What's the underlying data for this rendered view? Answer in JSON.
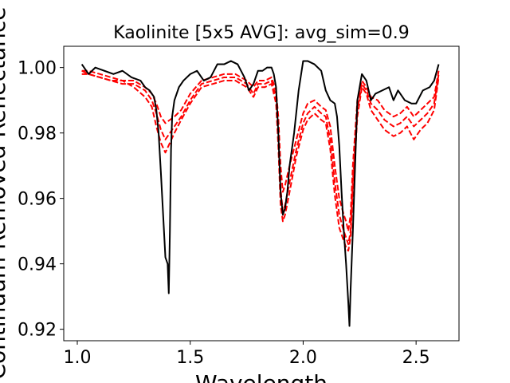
{
  "chart_data": {
    "type": "line",
    "title": "Kaolinite [5x5 AVG]: avg_sim=0.9",
    "xlabel": "Wavelength",
    "ylabel": "Continuum Removed Reflectance",
    "xlim": [
      0.94,
      2.69
    ],
    "ylim": [
      0.9165,
      1.0065
    ],
    "grid": false,
    "x_ticks": [
      1.0,
      1.5,
      2.0,
      2.5
    ],
    "x_tick_labels": [
      "1.0",
      "1.5",
      "2.0",
      "2.5"
    ],
    "y_ticks": [
      0.92,
      0.94,
      0.96,
      0.98,
      1.0
    ],
    "y_tick_labels": [
      "0.92",
      "0.94",
      "0.96",
      "0.98",
      "1.00"
    ],
    "colors": {
      "reference": "#000000",
      "pixels": "#ff0000"
    },
    "series": [
      {
        "style": "solid",
        "x": [
          1.02,
          1.05,
          1.08,
          1.12,
          1.16,
          1.2,
          1.24,
          1.28,
          1.3,
          1.32,
          1.34,
          1.35,
          1.36,
          1.37,
          1.38,
          1.39,
          1.4,
          1.405,
          1.41,
          1.415,
          1.42,
          1.43,
          1.45,
          1.47,
          1.5,
          1.53,
          1.56,
          1.59,
          1.62,
          1.65,
          1.68,
          1.71,
          1.74,
          1.76,
          1.78,
          1.8,
          1.82,
          1.84,
          1.86,
          1.87,
          1.88,
          1.89,
          1.9,
          1.91,
          1.92,
          1.93,
          1.94,
          1.96,
          1.98,
          2.0,
          2.02,
          2.05,
          2.08,
          2.1,
          2.12,
          2.14,
          2.15,
          2.16,
          2.17,
          2.18,
          2.19,
          2.2,
          2.205,
          2.21,
          2.22,
          2.23,
          2.24,
          2.26,
          2.28,
          2.3,
          2.32,
          2.35,
          2.38,
          2.4,
          2.42,
          2.45,
          2.48,
          2.5,
          2.53,
          2.56,
          2.58,
          2.6
        ],
        "y": [
          1.001,
          0.998,
          1.0,
          0.999,
          0.998,
          0.999,
          0.997,
          0.996,
          0.994,
          0.993,
          0.991,
          0.987,
          0.98,
          0.968,
          0.955,
          0.942,
          0.94,
          0.931,
          0.95,
          0.975,
          0.985,
          0.99,
          0.994,
          0.996,
          0.998,
          0.999,
          0.996,
          0.997,
          1.001,
          1.001,
          1.002,
          1.001,
          0.997,
          0.993,
          0.995,
          0.999,
          0.999,
          1.0,
          1.0,
          0.998,
          0.994,
          0.98,
          0.962,
          0.955,
          0.957,
          0.962,
          0.97,
          0.98,
          0.993,
          1.002,
          1.002,
          1.001,
          0.999,
          0.993,
          0.99,
          0.989,
          0.985,
          0.976,
          0.962,
          0.95,
          0.94,
          0.928,
          0.921,
          0.932,
          0.95,
          0.97,
          0.99,
          0.998,
          0.996,
          0.99,
          0.992,
          0.993,
          0.994,
          0.99,
          0.993,
          0.99,
          0.989,
          0.989,
          0.993,
          0.994,
          0.996,
          1.001
        ]
      },
      {
        "style": "dashed",
        "x": [
          1.02,
          1.05,
          1.1,
          1.15,
          1.2,
          1.25,
          1.3,
          1.33,
          1.35,
          1.37,
          1.39,
          1.41,
          1.43,
          1.46,
          1.5,
          1.55,
          1.6,
          1.65,
          1.7,
          1.75,
          1.78,
          1.8,
          1.83,
          1.86,
          1.88,
          1.89,
          1.9,
          1.91,
          1.92,
          1.94,
          1.97,
          2.0,
          2.02,
          2.05,
          2.08,
          2.1,
          2.12,
          2.14,
          2.16,
          2.18,
          2.19,
          2.2,
          2.21,
          2.22,
          2.24,
          2.26,
          2.28,
          2.3,
          2.33,
          2.36,
          2.4,
          2.43,
          2.46,
          2.49,
          2.52,
          2.55,
          2.58,
          2.6
        ],
        "y": [
          0.999,
          0.999,
          0.998,
          0.997,
          0.996,
          0.996,
          0.994,
          0.992,
          0.989,
          0.985,
          0.983,
          0.984,
          0.985,
          0.987,
          0.992,
          0.996,
          0.997,
          0.998,
          0.998,
          0.996,
          0.994,
          0.996,
          0.996,
          0.997,
          0.993,
          0.985,
          0.97,
          0.962,
          0.964,
          0.97,
          0.978,
          0.986,
          0.989,
          0.99,
          0.988,
          0.987,
          0.982,
          0.97,
          0.96,
          0.955,
          0.953,
          0.95,
          0.955,
          0.97,
          0.99,
          0.996,
          0.994,
          0.991,
          0.99,
          0.987,
          0.985,
          0.986,
          0.988,
          0.985,
          0.987,
          0.989,
          0.991,
          0.999
        ]
      },
      {
        "style": "dashed",
        "x": [
          1.02,
          1.05,
          1.1,
          1.15,
          1.2,
          1.25,
          1.3,
          1.33,
          1.35,
          1.37,
          1.39,
          1.41,
          1.43,
          1.46,
          1.5,
          1.55,
          1.6,
          1.65,
          1.7,
          1.75,
          1.78,
          1.8,
          1.83,
          1.86,
          1.88,
          1.89,
          1.9,
          1.91,
          1.92,
          1.94,
          1.97,
          2.0,
          2.02,
          2.05,
          2.08,
          2.1,
          2.12,
          2.14,
          2.16,
          2.18,
          2.19,
          2.2,
          2.21,
          2.22,
          2.24,
          2.26,
          2.28,
          2.3,
          2.33,
          2.36,
          2.4,
          2.43,
          2.46,
          2.49,
          2.52,
          2.55,
          2.58,
          2.6
        ],
        "y": [
          0.998,
          0.998,
          0.997,
          0.996,
          0.995,
          0.995,
          0.993,
          0.99,
          0.986,
          0.981,
          0.978,
          0.98,
          0.982,
          0.985,
          0.99,
          0.995,
          0.996,
          0.997,
          0.997,
          0.995,
          0.992,
          0.995,
          0.995,
          0.996,
          0.991,
          0.98,
          0.963,
          0.956,
          0.958,
          0.965,
          0.975,
          0.983,
          0.986,
          0.988,
          0.986,
          0.985,
          0.978,
          0.965,
          0.955,
          0.95,
          0.948,
          0.946,
          0.95,
          0.965,
          0.987,
          0.995,
          0.993,
          0.989,
          0.987,
          0.984,
          0.982,
          0.983,
          0.985,
          0.982,
          0.984,
          0.986,
          0.989,
          0.998
        ]
      },
      {
        "style": "dashed",
        "x": [
          1.02,
          1.05,
          1.1,
          1.15,
          1.2,
          1.25,
          1.3,
          1.33,
          1.35,
          1.37,
          1.39,
          1.41,
          1.43,
          1.46,
          1.5,
          1.55,
          1.6,
          1.65,
          1.7,
          1.75,
          1.78,
          1.8,
          1.83,
          1.86,
          1.88,
          1.89,
          1.9,
          1.91,
          1.92,
          1.94,
          1.97,
          2.0,
          2.02,
          2.05,
          2.08,
          2.1,
          2.12,
          2.14,
          2.16,
          2.18,
          2.19,
          2.2,
          2.21,
          2.22,
          2.24,
          2.26,
          2.28,
          2.3,
          2.33,
          2.36,
          2.4,
          2.43,
          2.46,
          2.49,
          2.52,
          2.55,
          2.58,
          2.6
        ],
        "y": [
          0.999,
          0.998,
          0.997,
          0.996,
          0.996,
          0.994,
          0.991,
          0.988,
          0.982,
          0.977,
          0.974,
          0.977,
          0.98,
          0.984,
          0.989,
          0.994,
          0.995,
          0.996,
          0.996,
          0.994,
          0.991,
          0.994,
          0.994,
          0.995,
          0.989,
          0.976,
          0.958,
          0.953,
          0.955,
          0.962,
          0.973,
          0.981,
          0.984,
          0.986,
          0.984,
          0.983,
          0.975,
          0.961,
          0.951,
          0.947,
          0.945,
          0.944,
          0.948,
          0.962,
          0.985,
          0.994,
          0.992,
          0.987,
          0.984,
          0.981,
          0.979,
          0.98,
          0.982,
          0.978,
          0.981,
          0.983,
          0.987,
          0.997
        ]
      }
    ]
  }
}
